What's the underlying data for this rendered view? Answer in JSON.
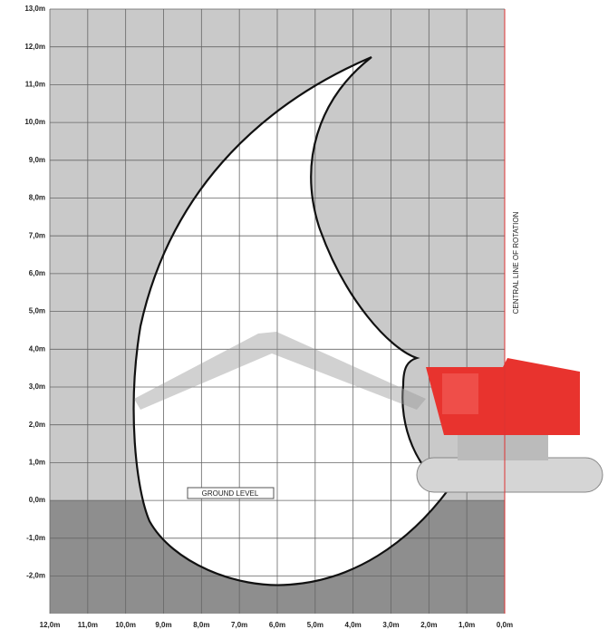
{
  "y_axis": {
    "labels": [
      "13,0m",
      "12,0m",
      "11,0m",
      "10,0m",
      "9,0m",
      "8,0m",
      "7,0m",
      "6,0m",
      "5,0m",
      "4,0m",
      "3,0m",
      "2,0m",
      "1,0m",
      "0,0m",
      "-1,0m",
      "-2,0m"
    ]
  },
  "x_axis": {
    "labels": [
      "12,0m",
      "11,0m",
      "10,0m",
      "9,0m",
      "8,0m",
      "7,0m",
      "6,0m",
      "5,0m",
      "4,0m",
      "3,0m",
      "2,0m",
      "1,0m",
      "0,0m"
    ]
  },
  "annotations": {
    "ground": "GROUND LEVEL",
    "rotation": "CENTRAL LINE OF ROTATION"
  }
}
